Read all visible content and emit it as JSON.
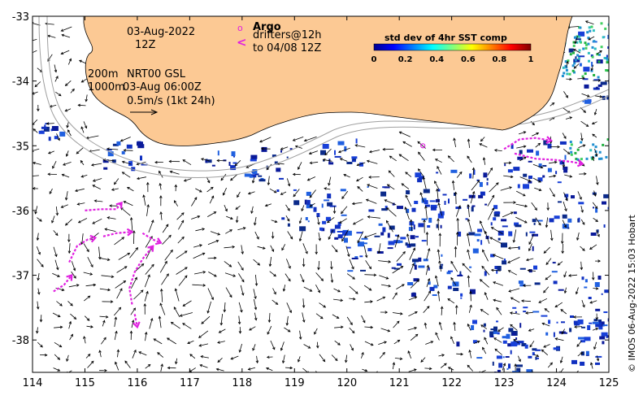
{
  "map": {
    "lon_range": [
      114,
      125
    ],
    "lat_range": [
      -38.5,
      -33
    ],
    "x_ticks": [
      114,
      115,
      116,
      117,
      118,
      119,
      120,
      121,
      122,
      123,
      124,
      125
    ],
    "y_ticks": [
      -33,
      -34,
      -35,
      -36,
      -37,
      -38
    ],
    "land_color": "#fcc994",
    "contour_color": "#a0a0a0",
    "drifter_color": "#e020e0"
  },
  "annotations": {
    "date": "03-Aug-2022",
    "time": "12Z",
    "contour_200": "200m",
    "product": "NRT00 GSL",
    "contour_1000": "1000m",
    "valid": "03-Aug 06:00Z",
    "scale": "0.5m/s (1kt 24h)",
    "argo_symbol": "o",
    "argo_label": "Argo",
    "drifters_line1": "drifters@12h",
    "drifters_line2": "to 04/08 12Z",
    "drifter_symbol": "<"
  },
  "colorbar": {
    "title": "std dev of 4hr SST comp",
    "ticks": [
      "0",
      "0.2",
      "0.4",
      "0.6",
      "0.8",
      "1"
    ],
    "range": [
      0,
      1
    ]
  },
  "credit": "© IMOS 06-Aug-2022 15:03 Hobart",
  "argo_floats": [
    [
      121.45,
      -35.0
    ]
  ],
  "drifter_tracks": [
    [
      [
        114.4,
        -37.25
      ],
      [
        114.6,
        -37.15
      ],
      [
        114.75,
        -37.0
      ]
    ],
    [
      [
        114.7,
        -36.8
      ],
      [
        114.85,
        -36.55
      ],
      [
        115.05,
        -36.45
      ],
      [
        115.2,
        -36.42
      ]
    ],
    [
      [
        115.35,
        -36.4
      ],
      [
        115.6,
        -36.35
      ],
      [
        115.9,
        -36.33
      ]
    ],
    [
      [
        115.0,
        -36.0
      ],
      [
        115.3,
        -35.98
      ],
      [
        115.6,
        -35.98
      ],
      [
        115.7,
        -35.88
      ]
    ],
    [
      [
        116.1,
        -36.35
      ],
      [
        116.3,
        -36.45
      ],
      [
        116.45,
        -36.5
      ]
    ],
    [
      [
        115.9,
        -37.45
      ],
      [
        115.85,
        -37.2
      ],
      [
        115.95,
        -36.95
      ],
      [
        116.1,
        -36.75
      ],
      [
        116.3,
        -36.55
      ]
    ],
    [
      [
        115.95,
        -37.6
      ],
      [
        116.0,
        -37.8
      ]
    ],
    [
      [
        123.0,
        -35.05
      ],
      [
        123.3,
        -34.9
      ],
      [
        123.6,
        -34.88
      ],
      [
        123.9,
        -34.92
      ]
    ],
    [
      [
        123.2,
        -35.12
      ],
      [
        123.6,
        -35.2
      ],
      [
        124.0,
        -35.22
      ],
      [
        124.3,
        -35.25
      ],
      [
        124.5,
        -35.28
      ]
    ]
  ]
}
